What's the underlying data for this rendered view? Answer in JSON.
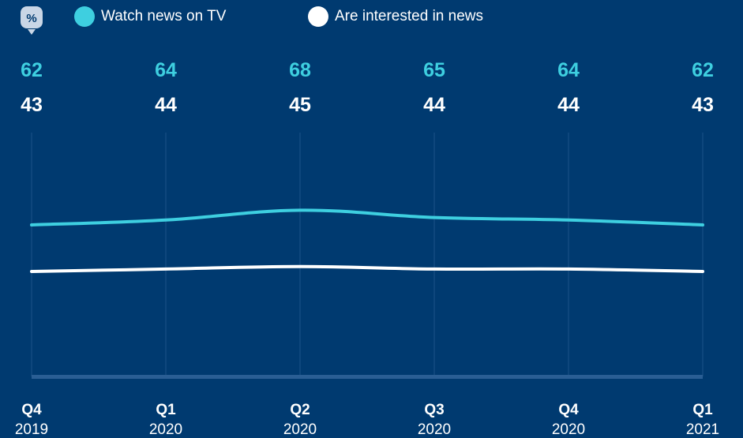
{
  "badge": {
    "label": "%"
  },
  "colors": {
    "background": "#003a70",
    "watch_tv": "#3ecfe0",
    "interested": "#ffffff",
    "grid": "#1b5288",
    "baseline": "#2a5e94"
  },
  "chart_data": {
    "type": "line",
    "categories": [
      {
        "quarter": "Q4",
        "year": "2019"
      },
      {
        "quarter": "Q1",
        "year": "2020"
      },
      {
        "quarter": "Q2",
        "year": "2020"
      },
      {
        "quarter": "Q3",
        "year": "2020"
      },
      {
        "quarter": "Q4",
        "year": "2020"
      },
      {
        "quarter": "Q1",
        "year": "2021"
      }
    ],
    "series": [
      {
        "name": "Watch news on TV",
        "values": [
          62,
          64,
          68,
          65,
          64,
          62
        ]
      },
      {
        "name": "Are interested in news",
        "values": [
          43,
          44,
          45,
          44,
          44,
          43
        ]
      }
    ],
    "unit": "%",
    "legend_position": "top-left",
    "grid": true,
    "ylim": [
      0,
      100
    ]
  }
}
